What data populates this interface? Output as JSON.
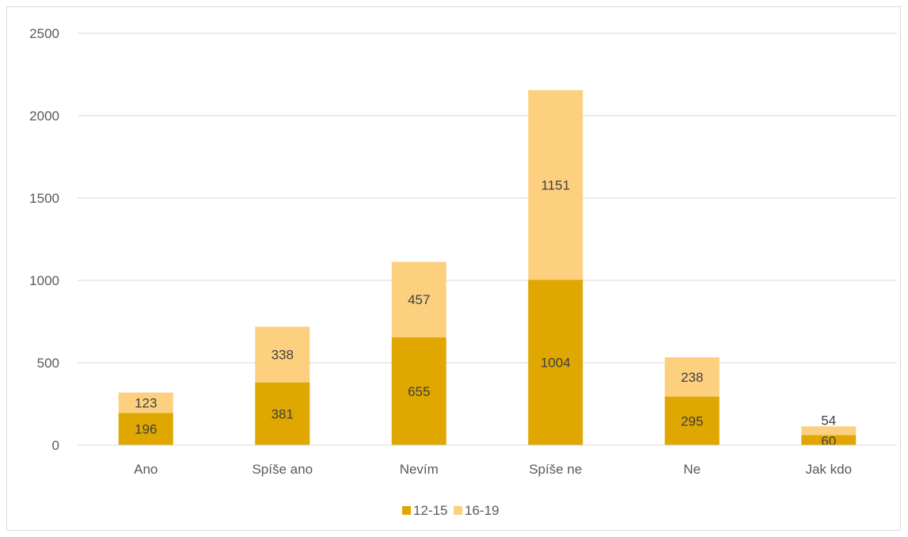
{
  "chart_data": {
    "type": "bar",
    "stacked": true,
    "categories": [
      "Ano",
      "Spíše ano",
      "Nevím",
      "Spíše ne",
      "Ne",
      "Jak kdo"
    ],
    "series": [
      {
        "name": "12-15",
        "values": [
          196,
          381,
          655,
          1004,
          295,
          60
        ],
        "color": "#DFA700"
      },
      {
        "name": "16-19",
        "values": [
          123,
          338,
          457,
          1151,
          238,
          54
        ],
        "color": "#FDD07F"
      }
    ],
    "yticks": [
      "0",
      "500",
      "1000",
      "1500",
      "2000",
      "2500"
    ],
    "ylim": [
      0,
      2500
    ],
    "grid": true,
    "legend_position": "bottom"
  }
}
